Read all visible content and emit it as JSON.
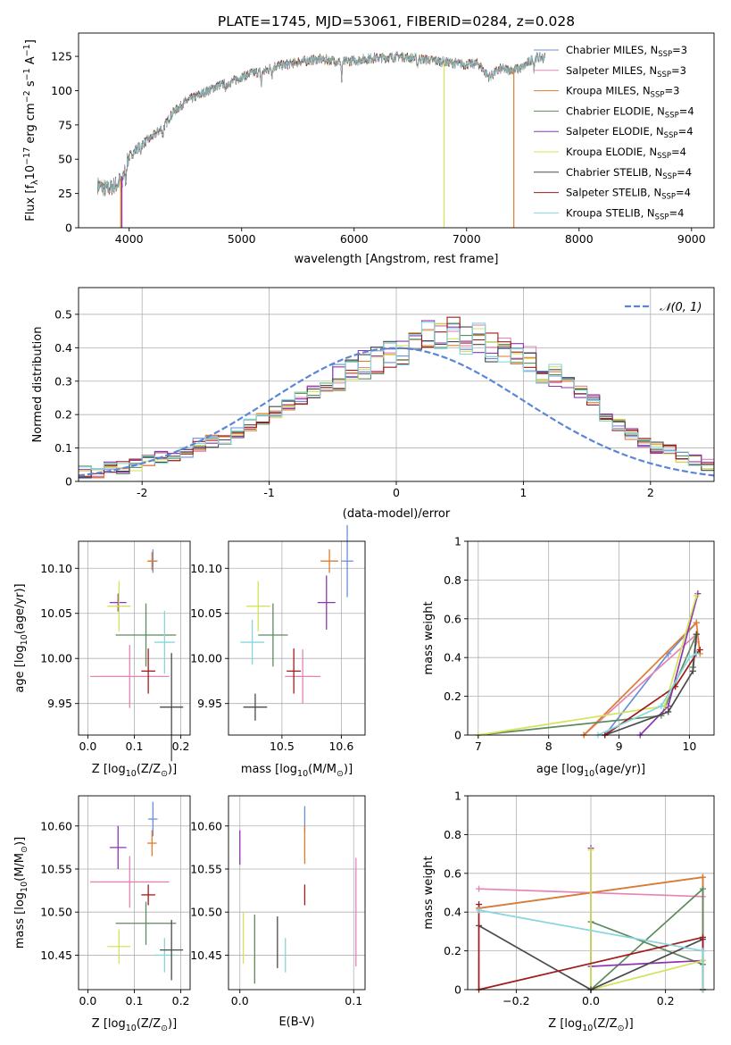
{
  "figure_title": "PLATE=1745, MJD=53061, FIBERID=0284, z=0.028",
  "colors": {
    "Chabrier MILES": "#6a8fd8",
    "Salpeter MILES": "#e583b5",
    "Kroupa MILES": "#e07b2c",
    "Chabrier ELODIE": "#5d8a5e",
    "Salpeter ELODIE": "#8e35b0",
    "Kroupa ELODIE": "#d4e35a",
    "Chabrier STELIB": "#4a4a4a",
    "Salpeter STELIB": "#a01c1c",
    "Kroupa STELIB": "#86d6dc",
    "normal": "#5b86d6"
  },
  "legend_spectrum": [
    {
      "name": "Chabrier MILES",
      "label": "Chabrier MILES, N",
      "sub": "SSP",
      "tail": "=3"
    },
    {
      "name": "Salpeter MILES",
      "label": "Salpeter MILES, N",
      "sub": "SSP",
      "tail": "=3"
    },
    {
      "name": "Kroupa MILES",
      "label": "Kroupa MILES, N",
      "sub": "SSP",
      "tail": "=3"
    },
    {
      "name": "Chabrier ELODIE",
      "label": "Chabrier ELODIE, N",
      "sub": "SSP",
      "tail": "=4"
    },
    {
      "name": "Salpeter ELODIE",
      "label": "Salpeter ELODIE, N",
      "sub": "SSP",
      "tail": "=4"
    },
    {
      "name": "Kroupa ELODIE",
      "label": "Kroupa ELODIE, N",
      "sub": "SSP",
      "tail": "=4"
    },
    {
      "name": "Chabrier STELIB",
      "label": "Chabrier STELIB, N",
      "sub": "SSP",
      "tail": "=4"
    },
    {
      "name": "Salpeter STELIB",
      "label": "Salpeter STELIB, N",
      "sub": "SSP",
      "tail": "=4"
    },
    {
      "name": "Kroupa STELIB",
      "label": "Kroupa STELIB, N",
      "sub": "SSP",
      "tail": "=4"
    }
  ],
  "chart_data": [
    {
      "id": "spectrum",
      "type": "line",
      "title": "PLATE=1745, MJD=53061, FIBERID=0284, z=0.028",
      "xlabel": "wavelength [Angstrom, rest frame]",
      "ylabel_parts": [
        "Flux [f",
        "λ",
        "10",
        "−17",
        " erg cm",
        "−2",
        " s",
        "−1",
        " A",
        "−1",
        "]"
      ],
      "xlim": [
        3550,
        9200
      ],
      "ylim": [
        0,
        142
      ],
      "xticks": [
        4000,
        5000,
        6000,
        7000,
        8000,
        9000
      ],
      "yticks": [
        0,
        25,
        50,
        75,
        100,
        125
      ],
      "grid": false,
      "legend_position": "upper-right",
      "continuum": {
        "x": [
          3720,
          3800,
          3900,
          3950,
          4000,
          4100,
          4200,
          4300,
          4400,
          4500,
          4600,
          4700,
          4800,
          4900,
          5000,
          5100,
          5200,
          5300,
          5400,
          5500,
          5600,
          5700,
          5800,
          5900,
          6000,
          6100,
          6200,
          6300,
          6400,
          6500,
          6600,
          6700,
          6800,
          6900,
          7000,
          7100,
          7200,
          7300,
          7400,
          7500,
          7600,
          7700
        ],
        "y": [
          31,
          28,
          32,
          40,
          52,
          60,
          66,
          73,
          85,
          92,
          96,
          100,
          104,
          106,
          110,
          113,
          114,
          118,
          119,
          121,
          122,
          123,
          122,
          121,
          122,
          123,
          124,
          124,
          125,
          124,
          123,
          122,
          121,
          120,
          119,
          120,
          110,
          116,
          115,
          117,
          124,
          124
        ]
      },
      "drops": [
        {
          "series": "Kroupa MILES",
          "x": 3925,
          "to": 0
        },
        {
          "series": "Salpeter ELODIE",
          "x": 3935,
          "to": 0
        },
        {
          "series": "Kroupa ELODIE",
          "x": 6800,
          "to": 0
        },
        {
          "series": "Kroupa MILES",
          "x": 7420,
          "to": 0
        }
      ]
    },
    {
      "id": "residuals",
      "type": "histogram",
      "xlabel": "(data-model)/error",
      "ylabel": "Normed distribution",
      "xlim": [
        -2.5,
        2.5
      ],
      "ylim": [
        0,
        0.58
      ],
      "xticks": [
        -2,
        -1,
        0,
        1,
        2
      ],
      "yticks": [
        0,
        0.1,
        0.2,
        0.3,
        0.4,
        0.5
      ],
      "grid": true,
      "legend_position": "upper-right",
      "legend_label": "𝒩(0, 1)",
      "bin_width": 0.1,
      "bin_start": -2.5,
      "base_values": [
        0.03,
        0.03,
        0.04,
        0.04,
        0.05,
        0.06,
        0.07,
        0.08,
        0.09,
        0.11,
        0.12,
        0.13,
        0.15,
        0.17,
        0.19,
        0.21,
        0.23,
        0.25,
        0.27,
        0.29,
        0.31,
        0.33,
        0.35,
        0.36,
        0.38,
        0.39,
        0.41,
        0.44,
        0.43,
        0.45,
        0.42,
        0.43,
        0.4,
        0.4,
        0.37,
        0.36,
        0.32,
        0.32,
        0.3,
        0.27,
        0.24,
        0.2,
        0.17,
        0.14,
        0.12,
        0.1,
        0.09,
        0.07,
        0.06,
        0.05,
        0.04,
        0.04,
        0.03
      ]
    },
    {
      "id": "age_vs_Z",
      "type": "errorbar",
      "xlabel_parts": [
        "Z [log",
        "10",
        "(Z/Z",
        "⊙",
        ")]"
      ],
      "ylabel_parts": [
        "age  [log",
        "10",
        "(age/yr)]"
      ],
      "xlim": [
        -0.02,
        0.22
      ],
      "ylim": [
        9.915,
        10.13
      ],
      "xticks": [
        0.0,
        0.1,
        0.2
      ],
      "xticklabels": [
        "0.0",
        "0.1",
        "0.2"
      ],
      "yticks": [
        9.95,
        10.0,
        10.05,
        10.1
      ],
      "yticklabels": [
        "9.95",
        "10.00",
        "10.05",
        "10.10"
      ],
      "grid": true,
      "points": [
        {
          "series": "Chabrier MILES",
          "x": 0.14,
          "y": 10.108,
          "xerr": 0.01,
          "yerr": 0.013
        },
        {
          "series": "Kroupa MILES",
          "x": 0.138,
          "y": 10.108,
          "xerr": 0.01,
          "yerr": 0.01
        },
        {
          "series": "Salpeter MILES",
          "x": 0.09,
          "y": 9.98,
          "xerr": 0.085,
          "yerr": 0.035
        },
        {
          "series": "Salpeter ELODIE",
          "x": 0.065,
          "y": 10.062,
          "xerr": 0.018,
          "yerr": 0.01
        },
        {
          "series": "Kroupa ELODIE",
          "x": 0.067,
          "y": 10.058,
          "xerr": 0.025,
          "yerr": 0.028
        },
        {
          "series": "Chabrier ELODIE",
          "x": 0.125,
          "y": 10.026,
          "xerr": 0.065,
          "yerr": 0.035
        },
        {
          "series": "Kroupa STELIB",
          "x": 0.165,
          "y": 10.018,
          "xerr": 0.022,
          "yerr": 0.035
        },
        {
          "series": "Salpeter STELIB",
          "x": 0.13,
          "y": 9.986,
          "xerr": 0.015,
          "yerr": 0.025
        },
        {
          "series": "Chabrier STELIB",
          "x": 0.18,
          "y": 9.946,
          "xerr": 0.025,
          "yerr": 0.06
        }
      ]
    },
    {
      "id": "age_vs_mass",
      "type": "errorbar",
      "xlabel_parts": [
        "mass [log",
        "10",
        "(M/M",
        "⊙",
        ")]"
      ],
      "ylabel_parts": [],
      "xlim": [
        10.41,
        10.64
      ],
      "ylim": [
        9.915,
        10.13
      ],
      "xticks": [
        10.5,
        10.6
      ],
      "xticklabels": [
        "10.5",
        "10.6"
      ],
      "yticks": [
        9.95,
        10.0,
        10.05,
        10.1
      ],
      "yticklabels": [
        "9.95",
        "10.00",
        "10.05",
        "10.10"
      ],
      "grid": true,
      "points": [
        {
          "series": "Chabrier MILES",
          "x": 10.61,
          "y": 10.108,
          "xerr": 0.01,
          "yerr": 0.04
        },
        {
          "series": "Kroupa MILES",
          "x": 10.58,
          "y": 10.108,
          "xerr": 0.015,
          "yerr": 0.013
        },
        {
          "series": "Salpeter MILES",
          "x": 10.535,
          "y": 9.98,
          "xerr": 0.03,
          "yerr": 0.03
        },
        {
          "series": "Salpeter ELODIE",
          "x": 10.575,
          "y": 10.062,
          "xerr": 0.015,
          "yerr": 0.03
        },
        {
          "series": "Kroupa ELODIE",
          "x": 10.46,
          "y": 10.058,
          "xerr": 0.02,
          "yerr": 0.028
        },
        {
          "series": "Chabrier ELODIE",
          "x": 10.485,
          "y": 10.026,
          "xerr": 0.025,
          "yerr": 0.035
        },
        {
          "series": "Kroupa STELIB",
          "x": 10.45,
          "y": 10.018,
          "xerr": 0.02,
          "yerr": 0.025
        },
        {
          "series": "Salpeter STELIB",
          "x": 10.52,
          "y": 9.986,
          "xerr": 0.012,
          "yerr": 0.025
        },
        {
          "series": "Chabrier STELIB",
          "x": 10.455,
          "y": 9.946,
          "xerr": 0.02,
          "yerr": 0.015
        }
      ]
    },
    {
      "id": "massweight_vs_age",
      "type": "line",
      "xlabel_parts": [
        "age  [log",
        "10",
        "(age/yr)]"
      ],
      "ylabel": "mass weight",
      "xlim": [
        6.85,
        10.35
      ],
      "ylim": [
        0,
        1.0
      ],
      "xticks": [
        7,
        8,
        9,
        10
      ],
      "yticks": [
        0,
        0.2,
        0.4,
        0.6,
        0.8,
        1.0
      ],
      "grid": true,
      "series": [
        {
          "name": "Chabrier MILES",
          "x": [
            8.8,
            9.7,
            10.1
          ],
          "y": [
            0.0,
            0.42,
            0.58
          ]
        },
        {
          "name": "Salpeter MILES",
          "x": [
            8.5,
            10.1,
            10.1
          ],
          "y": [
            0.0,
            0.52,
            0.48
          ]
        },
        {
          "name": "Kroupa MILES",
          "x": [
            8.5,
            10.1,
            10.15
          ],
          "y": [
            0.0,
            0.58,
            0.42
          ]
        },
        {
          "name": "Chabrier ELODIE",
          "x": [
            7.0,
            9.6,
            10.1,
            10.05
          ],
          "y": [
            0.0,
            0.1,
            0.52,
            0.35
          ]
        },
        {
          "name": "Salpeter ELODIE",
          "x": [
            9.3,
            9.7,
            10.12
          ],
          "y": [
            0.0,
            0.15,
            0.73
          ]
        },
        {
          "name": "Kroupa ELODIE",
          "x": [
            7.0,
            9.65,
            10.1
          ],
          "y": [
            0.0,
            0.15,
            0.72
          ]
        },
        {
          "name": "Chabrier STELIB",
          "x": [
            8.8,
            9.7,
            10.05,
            10.1
          ],
          "y": [
            0.0,
            0.12,
            0.33,
            0.52
          ]
        },
        {
          "name": "Salpeter STELIB",
          "x": [
            8.8,
            9.8,
            10.1,
            10.15
          ],
          "y": [
            0.0,
            0.25,
            0.42,
            0.44
          ]
        },
        {
          "name": "Kroupa STELIB",
          "x": [
            8.7,
            9.6,
            10.0,
            10.1
          ],
          "y": [
            0.0,
            0.15,
            0.4,
            0.42
          ]
        }
      ]
    },
    {
      "id": "mass_vs_Z",
      "type": "errorbar",
      "xlabel_parts": [
        "Z [log",
        "10",
        "(Z/Z",
        "⊙",
        ")]"
      ],
      "ylabel_parts": [
        "mass [log",
        "10",
        "(M/M",
        "⊙",
        ")]"
      ],
      "xlim": [
        -0.02,
        0.22
      ],
      "ylim": [
        10.41,
        10.635
      ],
      "xticks": [
        0.0,
        0.1,
        0.2
      ],
      "xticklabels": [
        "0.0",
        "0.1",
        "0.2"
      ],
      "yticks": [
        10.45,
        10.5,
        10.55,
        10.6
      ],
      "yticklabels": [
        "10.45",
        "10.50",
        "10.55",
        "10.60"
      ],
      "grid": true,
      "points": [
        {
          "series": "Chabrier MILES",
          "x": 0.14,
          "y": 10.608,
          "xerr": 0.01,
          "yerr": 0.02
        },
        {
          "series": "Kroupa MILES",
          "x": 0.138,
          "y": 10.58,
          "xerr": 0.01,
          "yerr": 0.015
        },
        {
          "series": "Salpeter MILES",
          "x": 0.09,
          "y": 10.535,
          "xerr": 0.085,
          "yerr": 0.03
        },
        {
          "series": "Salpeter ELODIE",
          "x": 0.065,
          "y": 10.575,
          "xerr": 0.018,
          "yerr": 0.025
        },
        {
          "series": "Kroupa ELODIE",
          "x": 0.067,
          "y": 10.46,
          "xerr": 0.025,
          "yerr": 0.02
        },
        {
          "series": "Chabrier ELODIE",
          "x": 0.125,
          "y": 10.487,
          "xerr": 0.065,
          "yerr": 0.025
        },
        {
          "series": "Kroupa STELIB",
          "x": 0.165,
          "y": 10.45,
          "xerr": 0.022,
          "yerr": 0.02
        },
        {
          "series": "Salpeter STELIB",
          "x": 0.13,
          "y": 10.52,
          "xerr": 0.015,
          "yerr": 0.012
        },
        {
          "series": "Chabrier STELIB",
          "x": 0.18,
          "y": 10.456,
          "xerr": 0.025,
          "yerr": 0.035
        }
      ]
    },
    {
      "id": "mass_vs_EBV",
      "type": "errorbar",
      "xlabel": "E(B-V)",
      "xlim": [
        -0.01,
        0.11
      ],
      "ylim": [
        10.41,
        10.635
      ],
      "xticks": [
        0.0,
        0.1
      ],
      "xticklabels": [
        "0.0",
        "0.1"
      ],
      "yticks": [
        10.45,
        10.5,
        10.55,
        10.6
      ],
      "yticklabels": [
        "10.45",
        "10.50",
        "10.55",
        "10.60"
      ],
      "grid": true,
      "points": [
        {
          "series": "Chabrier MILES",
          "x": 0.057,
          "y": 10.608,
          "xerr": 0.0,
          "yerr": 0.015
        },
        {
          "series": "Kroupa MILES",
          "x": 0.057,
          "y": 10.578,
          "xerr": 0.0,
          "yerr": 0.022
        },
        {
          "series": "Salpeter MILES",
          "x": 0.102,
          "y": 10.5,
          "xerr": 0.0,
          "yerr": 0.063
        },
        {
          "series": "Salpeter ELODIE",
          "x": 0.0,
          "y": 10.575,
          "xerr": 0.0,
          "yerr": 0.02
        },
        {
          "series": "Kroupa ELODIE",
          "x": 0.003,
          "y": 10.47,
          "xerr": 0.0,
          "yerr": 0.03
        },
        {
          "series": "Chabrier ELODIE",
          "x": 0.013,
          "y": 10.457,
          "xerr": 0.0,
          "yerr": 0.04
        },
        {
          "series": "Kroupa STELIB",
          "x": 0.04,
          "y": 10.45,
          "xerr": 0.0,
          "yerr": 0.02
        },
        {
          "series": "Salpeter STELIB",
          "x": 0.057,
          "y": 10.52,
          "xerr": 0.0,
          "yerr": 0.012
        },
        {
          "series": "Chabrier STELIB",
          "x": 0.033,
          "y": 10.465,
          "xerr": 0.0,
          "yerr": 0.03
        }
      ]
    },
    {
      "id": "massweight_vs_Z",
      "type": "line",
      "xlabel_parts": [
        "Z [log",
        "10",
        "(Z/Z",
        "⊙",
        ")]"
      ],
      "ylabel": "mass weight",
      "xlim": [
        -0.33,
        0.33
      ],
      "ylim": [
        0,
        1.0
      ],
      "xticks": [
        -0.2,
        0.0,
        0.2
      ],
      "xticklabels": [
        "−0.2",
        "0.0",
        "0.2"
      ],
      "yticks": [
        0,
        0.2,
        0.4,
        0.6,
        0.8,
        1.0
      ],
      "grid": true,
      "series": [
        {
          "name": "Chabrier MILES",
          "x": [
            -0.3,
            0.3,
            0.3
          ],
          "y": [
            0.42,
            0.58,
            0.0
          ]
        },
        {
          "name": "Salpeter MILES",
          "x": [
            -0.3,
            0.3,
            0.3
          ],
          "y": [
            0.52,
            0.48,
            0.0
          ]
        },
        {
          "name": "Kroupa MILES",
          "x": [
            -0.3,
            0.3,
            0.3
          ],
          "y": [
            0.42,
            0.58,
            0.0
          ]
        },
        {
          "name": "Chabrier ELODIE",
          "x": [
            0.0,
            0.3,
            0.3,
            0.0,
            0.0
          ],
          "y": [
            0.0,
            0.52,
            0.13,
            0.35,
            0.0
          ]
        },
        {
          "name": "Salpeter ELODIE",
          "x": [
            0.0,
            0.0,
            0.3,
            0.3
          ],
          "y": [
            0.73,
            0.12,
            0.15,
            0.0
          ]
        },
        {
          "name": "Kroupa ELODIE",
          "x": [
            0.0,
            0.0,
            0.3,
            0.3
          ],
          "y": [
            0.72,
            0.0,
            0.15,
            0.0
          ]
        },
        {
          "name": "Chabrier STELIB",
          "x": [
            -0.3,
            0.0,
            0.3,
            0.3
          ],
          "y": [
            0.33,
            0.0,
            0.26,
            0.0
          ]
        },
        {
          "name": "Salpeter STELIB",
          "x": [
            -0.3,
            -0.3,
            0.3,
            0.3
          ],
          "y": [
            0.44,
            0.0,
            0.27,
            0.0
          ]
        },
        {
          "name": "Kroupa STELIB",
          "x": [
            -0.3,
            0.3,
            0.3
          ],
          "y": [
            0.41,
            0.2,
            0.0
          ]
        }
      ]
    }
  ]
}
